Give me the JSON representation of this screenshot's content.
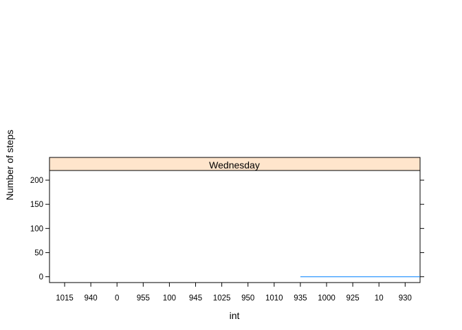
{
  "chart_data": {
    "type": "line",
    "panel": "Wednesday",
    "xlabel": "int",
    "ylabel": "Number of steps",
    "categories": [
      "1015",
      "940",
      "0",
      "955",
      "100",
      "945",
      "1025",
      "950",
      "1010",
      "935",
      "1000",
      "925",
      "10",
      "930"
    ],
    "y_ticks": [
      0,
      50,
      100,
      150,
      200
    ],
    "ylim": [
      -12,
      220
    ],
    "series": [
      {
        "name": "steps",
        "color": "#0080ff",
        "points": [
          {
            "category": "935",
            "value": 0
          },
          {
            "category": "1000",
            "value": 0
          },
          {
            "category": "925",
            "value": 0
          },
          {
            "category": "10",
            "value": 0
          },
          {
            "category": "930",
            "value": 0
          },
          {
            "category": "930+",
            "value": 0
          }
        ]
      }
    ],
    "strip_color": "#ffe5cc"
  }
}
